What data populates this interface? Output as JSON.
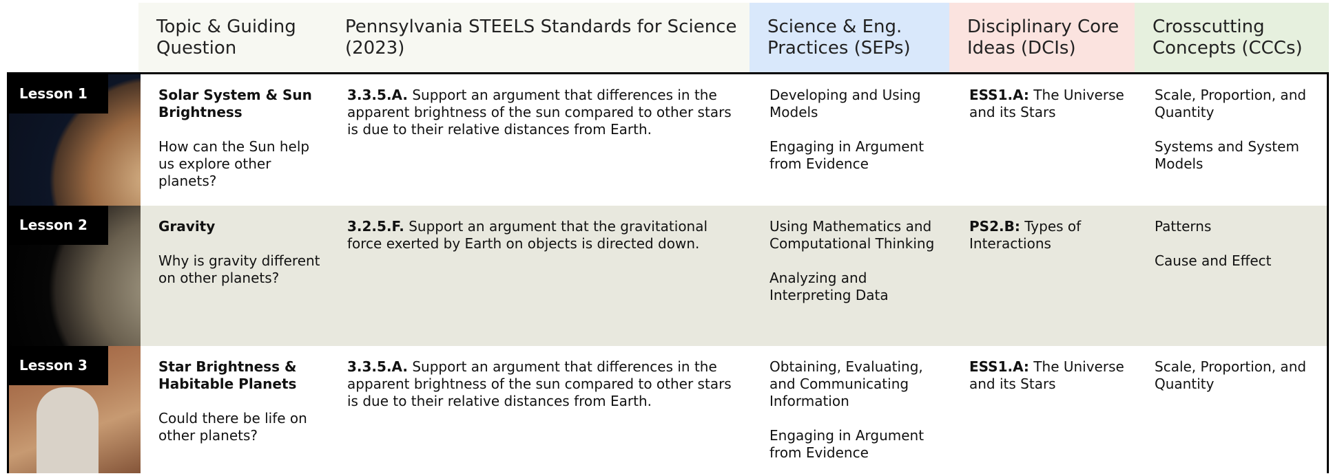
{
  "header": {
    "columns": [
      "Topic & Guiding Question",
      "Pennsylvania STEELS Standards for Science (2023)",
      "Science & Eng. Practices (SEPs)",
      "Disciplinary Core Ideas (DCIs)",
      "Crosscutting Concepts (CCCs)"
    ]
  },
  "lessons": [
    {
      "label": "Lesson 1",
      "topic": "Solar System & Sun Brightness",
      "question": "How can the Sun help us explore other planets?",
      "standard_code": "3.3.5.A.",
      "standard_text": "Support an argument that differences in the apparent brightness of the sun compared to other stars is due to their relative distances from Earth.",
      "seps": [
        "Developing and Using Models",
        "Engaging in Argument from Evidence"
      ],
      "dci_code": "ESS1.A:",
      "dci_text": "The Universe and its Stars",
      "cccs": [
        "Scale, Proportion, and Quantity",
        "Systems and System Models"
      ]
    },
    {
      "label": "Lesson 2",
      "topic": "Gravity",
      "question": "Why is gravity different on other planets?",
      "standard_code": "3.2.5.F.",
      "standard_text": "Support an argument that the gravitational force exerted by Earth on objects is directed down.",
      "seps": [
        "Using Mathematics and Computational Thinking",
        "Analyzing and Interpreting Data"
      ],
      "dci_code": "PS2.B:",
      "dci_text": "Types of Interactions",
      "cccs": [
        "Patterns",
        "Cause and Effect"
      ]
    },
    {
      "label": "Lesson 3",
      "topic": "Star Brightness & Habitable Planets",
      "question": "Could there be life on other planets?",
      "standard_code": "3.3.5.A.",
      "standard_text": "Support an argument that differences in the apparent brightness of the sun compared to other stars is due to their relative distances from Earth.",
      "seps": [
        "Obtaining, Evaluating, and Communicating Information",
        "Engaging in Argument from Evidence"
      ],
      "dci_code": "ESS1.A:",
      "dci_text": "The Universe and its Stars",
      "cccs": [
        "Scale, Proportion, and Quantity"
      ]
    }
  ]
}
